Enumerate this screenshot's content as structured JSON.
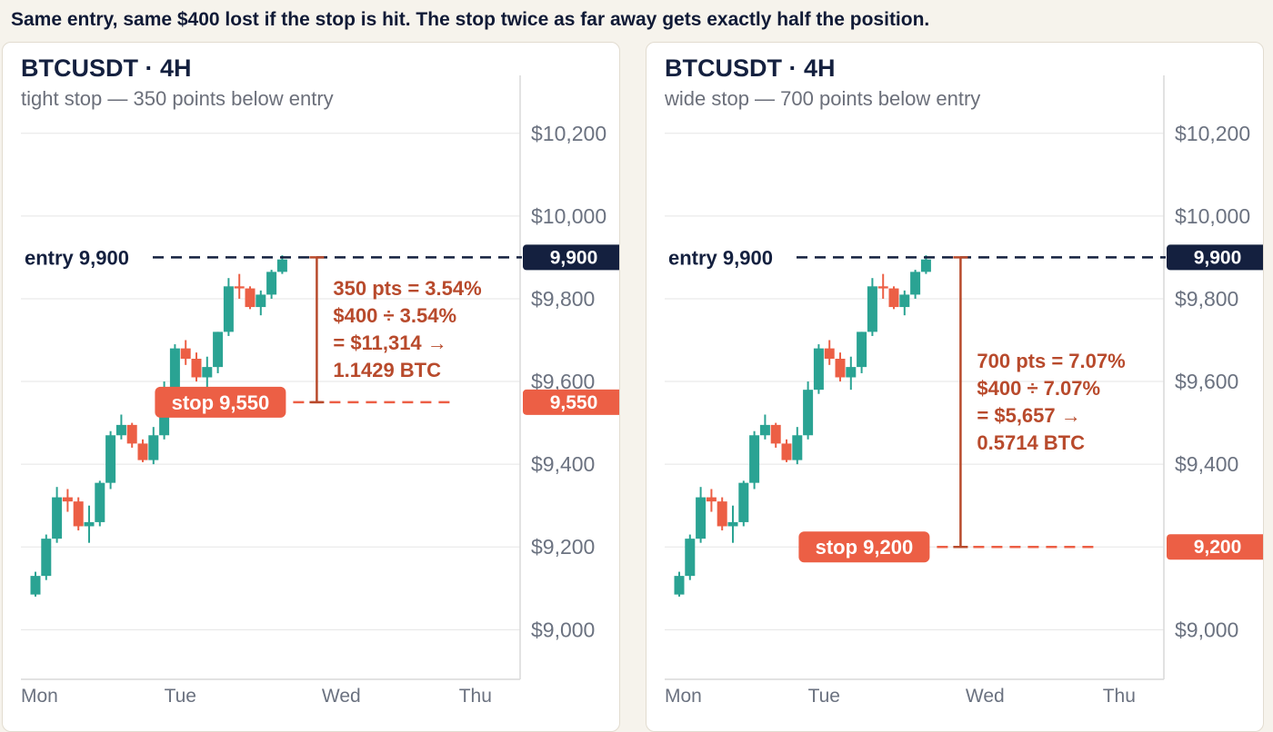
{
  "headline": "Same entry, same $400 lost if the stop is hit. The stop twice as far away gets exactly half the position.",
  "colors": {
    "up": "#2aa393",
    "down": "#ec5f45",
    "entry": "#14203f",
    "stop": "#ec5f45",
    "annotation": "#b84a2c",
    "grid": "#e5e5e5"
  },
  "panels": [
    {
      "title": "BTCUSDT · 4H",
      "subtitle": "tight stop — 350 points below entry",
      "entry_label": "entry 9,900",
      "entry_badge": "9,900",
      "stop_label": "stop 9,550",
      "stop_badge": "9,550",
      "annotation": [
        "350 pts = 3.54%",
        "$400 ÷ 3.54%",
        "= $11,314 →",
        "1.1429 BTC"
      ]
    },
    {
      "title": "BTCUSDT · 4H",
      "subtitle": "wide stop — 700 points below entry",
      "entry_label": "entry 9,900",
      "entry_badge": "9,900",
      "stop_label": "stop 9,200",
      "stop_badge": "9,200",
      "annotation": [
        "700 pts = 7.07%",
        "$400 ÷ 7.07%",
        "= $5,657 →",
        "0.5714 BTC"
      ]
    }
  ],
  "chart_data": [
    {
      "type": "candlestick",
      "title": "BTCUSDT · 4H",
      "subtitle": "tight stop — 350 points below entry",
      "y_ticks": [
        "$10,200",
        "$10,000",
        "$9,800",
        "$9,600",
        "$9,400",
        "$9,200",
        "$9,000"
      ],
      "y_tick_values": [
        10200,
        10000,
        9800,
        9600,
        9400,
        9200,
        9000
      ],
      "ylim": [
        8880,
        10340
      ],
      "x_ticks": [
        "Mon",
        "Tue",
        "Wed",
        "Thu"
      ],
      "x_tick_index": [
        0,
        13.5,
        28.5,
        41
      ],
      "entry": 9900,
      "stop": 9550,
      "points": 350,
      "percent": 3.54,
      "risk_usd": 400,
      "position_usd": 11314,
      "position_btc": 1.1429,
      "candles": [
        {
          "o": 9085,
          "h": 9140,
          "l": 9080,
          "c": 9130
        },
        {
          "o": 9130,
          "h": 9230,
          "l": 9120,
          "c": 9220
        },
        {
          "o": 9220,
          "h": 9345,
          "l": 9210,
          "c": 9320
        },
        {
          "o": 9320,
          "h": 9340,
          "l": 9285,
          "c": 9310
        },
        {
          "o": 9310,
          "h": 9320,
          "l": 9240,
          "c": 9250
        },
        {
          "o": 9250,
          "h": 9300,
          "l": 9210,
          "c": 9260
        },
        {
          "o": 9260,
          "h": 9360,
          "l": 9250,
          "c": 9355
        },
        {
          "o": 9355,
          "h": 9480,
          "l": 9340,
          "c": 9470
        },
        {
          "o": 9470,
          "h": 9520,
          "l": 9460,
          "c": 9495
        },
        {
          "o": 9495,
          "h": 9500,
          "l": 9440,
          "c": 9450
        },
        {
          "o": 9450,
          "h": 9460,
          "l": 9405,
          "c": 9410
        },
        {
          "o": 9410,
          "h": 9490,
          "l": 9400,
          "c": 9470
        },
        {
          "o": 9470,
          "h": 9600,
          "l": 9460,
          "c": 9580
        },
        {
          "o": 9580,
          "h": 9690,
          "l": 9570,
          "c": 9680
        },
        {
          "o": 9680,
          "h": 9700,
          "l": 9640,
          "c": 9655
        },
        {
          "o": 9655,
          "h": 9670,
          "l": 9600,
          "c": 9610
        },
        {
          "o": 9610,
          "h": 9660,
          "l": 9580,
          "c": 9635
        },
        {
          "o": 9635,
          "h": 9720,
          "l": 9620,
          "c": 9720
        },
        {
          "o": 9720,
          "h": 9850,
          "l": 9710,
          "c": 9830
        },
        {
          "o": 9830,
          "h": 9860,
          "l": 9800,
          "c": 9825
        },
        {
          "o": 9825,
          "h": 9830,
          "l": 9775,
          "c": 9780
        },
        {
          "o": 9780,
          "h": 9820,
          "l": 9760,
          "c": 9810
        },
        {
          "o": 9810,
          "h": 9870,
          "l": 9800,
          "c": 9865
        },
        {
          "o": 9865,
          "h": 9905,
          "l": 9860,
          "c": 9895
        }
      ]
    },
    {
      "type": "candlestick",
      "title": "BTCUSDT · 4H",
      "subtitle": "wide stop — 700 points below entry",
      "y_ticks": [
        "$10,200",
        "$10,000",
        "$9,800",
        "$9,600",
        "$9,400",
        "$9,200",
        "$9,000"
      ],
      "y_tick_values": [
        10200,
        10000,
        9800,
        9600,
        9400,
        9200,
        9000
      ],
      "ylim": [
        8880,
        10340
      ],
      "x_ticks": [
        "Mon",
        "Tue",
        "Wed",
        "Thu"
      ],
      "x_tick_index": [
        0,
        13.5,
        28.5,
        41
      ],
      "entry": 9900,
      "stop": 9200,
      "points": 700,
      "percent": 7.07,
      "risk_usd": 400,
      "position_usd": 5657,
      "position_btc": 0.5714,
      "candles": [
        {
          "o": 9085,
          "h": 9140,
          "l": 9080,
          "c": 9130
        },
        {
          "o": 9130,
          "h": 9230,
          "l": 9120,
          "c": 9220
        },
        {
          "o": 9220,
          "h": 9345,
          "l": 9210,
          "c": 9320
        },
        {
          "o": 9320,
          "h": 9340,
          "l": 9285,
          "c": 9310
        },
        {
          "o": 9310,
          "h": 9320,
          "l": 9240,
          "c": 9250
        },
        {
          "o": 9250,
          "h": 9300,
          "l": 9210,
          "c": 9260
        },
        {
          "o": 9260,
          "h": 9360,
          "l": 9250,
          "c": 9355
        },
        {
          "o": 9355,
          "h": 9480,
          "l": 9340,
          "c": 9470
        },
        {
          "o": 9470,
          "h": 9520,
          "l": 9460,
          "c": 9495
        },
        {
          "o": 9495,
          "h": 9500,
          "l": 9440,
          "c": 9450
        },
        {
          "o": 9450,
          "h": 9460,
          "l": 9405,
          "c": 9410
        },
        {
          "o": 9410,
          "h": 9490,
          "l": 9400,
          "c": 9470
        },
        {
          "o": 9470,
          "h": 9600,
          "l": 9460,
          "c": 9580
        },
        {
          "o": 9580,
          "h": 9690,
          "l": 9570,
          "c": 9680
        },
        {
          "o": 9680,
          "h": 9700,
          "l": 9640,
          "c": 9655
        },
        {
          "o": 9655,
          "h": 9670,
          "l": 9600,
          "c": 9610
        },
        {
          "o": 9610,
          "h": 9660,
          "l": 9580,
          "c": 9635
        },
        {
          "o": 9635,
          "h": 9720,
          "l": 9620,
          "c": 9720
        },
        {
          "o": 9720,
          "h": 9850,
          "l": 9710,
          "c": 9830
        },
        {
          "o": 9830,
          "h": 9860,
          "l": 9800,
          "c": 9825
        },
        {
          "o": 9825,
          "h": 9830,
          "l": 9775,
          "c": 9780
        },
        {
          "o": 9780,
          "h": 9820,
          "l": 9760,
          "c": 9810
        },
        {
          "o": 9810,
          "h": 9870,
          "l": 9800,
          "c": 9865
        },
        {
          "o": 9865,
          "h": 9905,
          "l": 9860,
          "c": 9895
        }
      ]
    }
  ]
}
